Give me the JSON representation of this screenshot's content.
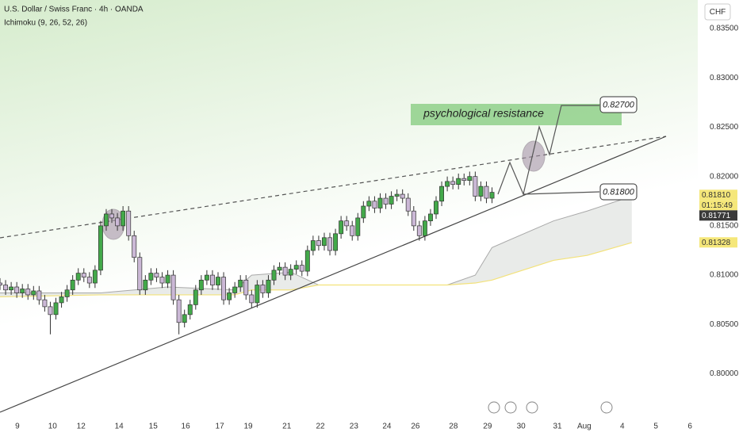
{
  "chart_data": {
    "type": "candlestick",
    "title": "U.S. Dollar / Swiss Franc · 4h · OANDA",
    "subtitle": "Ichimoku (9, 26, 52, 26)",
    "currency": "CHF",
    "up_color": "#43a94a",
    "down_color": "#cbb8d6",
    "x": [
      0,
      1,
      2,
      3,
      4,
      5,
      6,
      7,
      8,
      9,
      10,
      11,
      12,
      13,
      14,
      15,
      16,
      17,
      18,
      19,
      20,
      21,
      22,
      23,
      24,
      25,
      26,
      27,
      28,
      29,
      30,
      31,
      32,
      33,
      34,
      35,
      36,
      37,
      38,
      39,
      40,
      41,
      42,
      43,
      44,
      45,
      46,
      47,
      48,
      49,
      50,
      51,
      52,
      53,
      54,
      55,
      56,
      57,
      58,
      59,
      60,
      61,
      62,
      63,
      64,
      65,
      66,
      67,
      68,
      69,
      70,
      71,
      72,
      73,
      74,
      75,
      76,
      77,
      78,
      79,
      80,
      81,
      82,
      83,
      84,
      85,
      86,
      87,
      88
    ],
    "open": [
      0.8092,
      0.809,
      0.8085,
      0.8088,
      0.8082,
      0.8086,
      0.808,
      0.8084,
      0.8075,
      0.8068,
      0.806,
      0.8072,
      0.8078,
      0.8085,
      0.8095,
      0.8102,
      0.8098,
      0.8092,
      0.8105,
      0.815,
      0.8162,
      0.8158,
      0.815,
      0.8165,
      0.814,
      0.8118,
      0.8085,
      0.8095,
      0.8102,
      0.8098,
      0.8092,
      0.81,
      0.8075,
      0.8052,
      0.806,
      0.807,
      0.8085,
      0.8095,
      0.81,
      0.809,
      0.8098,
      0.8075,
      0.8082,
      0.8088,
      0.8095,
      0.808,
      0.8072,
      0.809,
      0.8082,
      0.8095,
      0.8105,
      0.8108,
      0.81,
      0.8106,
      0.811,
      0.8104,
      0.8125,
      0.8135,
      0.813,
      0.8138,
      0.8125,
      0.8142,
      0.8155,
      0.815,
      0.814,
      0.8158,
      0.817,
      0.8175,
      0.8168,
      0.8178,
      0.8172,
      0.818,
      0.8182,
      0.8178,
      0.8165,
      0.815,
      0.814,
      0.8155,
      0.8162,
      0.8175,
      0.819,
      0.8195,
      0.8192,
      0.8198,
      0.8196,
      0.82,
      0.818,
      0.819,
      0.8178
    ],
    "high": [
      0.8097,
      0.8095,
      0.8093,
      0.8093,
      0.8091,
      0.8091,
      0.8089,
      0.8089,
      0.808,
      0.8073,
      0.8077,
      0.8083,
      0.809,
      0.81,
      0.8107,
      0.8107,
      0.8103,
      0.811,
      0.8155,
      0.8167,
      0.8167,
      0.8163,
      0.817,
      0.817,
      0.8145,
      0.8123,
      0.81,
      0.8107,
      0.8107,
      0.8103,
      0.8105,
      0.8105,
      0.808,
      0.8065,
      0.8075,
      0.809,
      0.81,
      0.8105,
      0.8105,
      0.8103,
      0.8103,
      0.8087,
      0.8093,
      0.81,
      0.81,
      0.8085,
      0.8095,
      0.8095,
      0.81,
      0.811,
      0.8113,
      0.8113,
      0.8111,
      0.8115,
      0.8115,
      0.813,
      0.814,
      0.814,
      0.8143,
      0.8143,
      0.8147,
      0.816,
      0.816,
      0.8155,
      0.8163,
      0.8175,
      0.818,
      0.818,
      0.8183,
      0.8183,
      0.8185,
      0.8187,
      0.8187,
      0.8183,
      0.817,
      0.8155,
      0.816,
      0.8167,
      0.818,
      0.8195,
      0.82,
      0.82,
      0.8203,
      0.8203,
      0.8205,
      0.8205,
      0.8195,
      0.8195,
      0.8189
    ],
    "low": [
      0.8085,
      0.808,
      0.808,
      0.8077,
      0.8077,
      0.8075,
      0.8075,
      0.807,
      0.8063,
      0.804,
      0.8055,
      0.8067,
      0.8073,
      0.808,
      0.809,
      0.8093,
      0.8087,
      0.8087,
      0.81,
      0.8145,
      0.8153,
      0.8145,
      0.8145,
      0.8135,
      0.8113,
      0.808,
      0.808,
      0.809,
      0.8093,
      0.8087,
      0.8087,
      0.807,
      0.804,
      0.8047,
      0.8055,
      0.8065,
      0.808,
      0.809,
      0.8085,
      0.8085,
      0.807,
      0.807,
      0.8077,
      0.8083,
      0.8075,
      0.8067,
      0.8067,
      0.8077,
      0.8077,
      0.809,
      0.81,
      0.8095,
      0.8095,
      0.8101,
      0.8099,
      0.8099,
      0.812,
      0.8125,
      0.8125,
      0.812,
      0.812,
      0.8137,
      0.8145,
      0.8135,
      0.8135,
      0.8153,
      0.8165,
      0.8163,
      0.8163,
      0.8167,
      0.8167,
      0.8175,
      0.8173,
      0.816,
      0.8145,
      0.8135,
      0.8135,
      0.815,
      0.8157,
      0.817,
      0.8185,
      0.8187,
      0.8187,
      0.8191,
      0.8191,
      0.8175,
      0.8175,
      0.8173,
      0.8173
    ],
    "close": [
      0.809,
      0.8085,
      0.8088,
      0.8082,
      0.8086,
      0.808,
      0.8084,
      0.8075,
      0.8068,
      0.806,
      0.8072,
      0.8078,
      0.8085,
      0.8095,
      0.8102,
      0.8098,
      0.8092,
      0.8105,
      0.815,
      0.8162,
      0.8158,
      0.815,
      0.8165,
      0.814,
      0.8118,
      0.8085,
      0.8095,
      0.8102,
      0.8098,
      0.8092,
      0.81,
      0.8075,
      0.8052,
      0.806,
      0.807,
      0.8085,
      0.8095,
      0.81,
      0.809,
      0.8098,
      0.8075,
      0.8082,
      0.8088,
      0.8095,
      0.808,
      0.8072,
      0.809,
      0.8082,
      0.8095,
      0.8105,
      0.8108,
      0.81,
      0.8106,
      0.811,
      0.8104,
      0.8125,
      0.8135,
      0.813,
      0.8138,
      0.8125,
      0.8142,
      0.8155,
      0.815,
      0.814,
      0.8158,
      0.817,
      0.8175,
      0.8168,
      0.8178,
      0.8172,
      0.818,
      0.8182,
      0.8178,
      0.8165,
      0.815,
      0.814,
      0.8155,
      0.8162,
      0.8175,
      0.819,
      0.8195,
      0.8192,
      0.8198,
      0.8196,
      0.82,
      0.818,
      0.819,
      0.8178,
      0.8184
    ],
    "cloud": {
      "x": [
        0,
        18,
        30,
        42,
        45,
        52,
        57,
        80,
        85,
        88,
        99,
        105,
        113
      ],
      "span_a": [
        0.8082,
        0.8082,
        0.8088,
        0.8085,
        0.81,
        0.8103,
        0.809,
        0.809,
        0.81,
        0.8128,
        0.8155,
        0.8165,
        0.818
      ],
      "span_b": [
        0.8078,
        0.808,
        0.808,
        0.808,
        0.8085,
        0.8085,
        0.809,
        0.809,
        0.8092,
        0.8095,
        0.8115,
        0.812,
        0.8133
      ],
      "color_a": "#a9a9a9",
      "color_b": "#f3e27a"
    },
    "xlim": [
      0,
      124.8
    ],
    "ylim": [
      0.7961,
      0.8379
    ],
    "xticks": [
      {
        "value": 3.1,
        "label": "9"
      },
      {
        "value": 9.4,
        "label": "10"
      },
      {
        "value": 14.5,
        "label": "12"
      },
      {
        "value": 21.3,
        "label": "14"
      },
      {
        "value": 27.4,
        "label": "15"
      },
      {
        "value": 33.2,
        "label": "16"
      },
      {
        "value": 39.3,
        "label": "17"
      },
      {
        "value": 44.4,
        "label": "19"
      },
      {
        "value": 51.3,
        "label": "21"
      },
      {
        "value": 57.3,
        "label": "22"
      },
      {
        "value": 63.3,
        "label": "23"
      },
      {
        "value": 69.2,
        "label": "24"
      },
      {
        "value": 74.3,
        "label": "26"
      },
      {
        "value": 81.1,
        "label": "28"
      },
      {
        "value": 87.2,
        "label": "29"
      },
      {
        "value": 93.2,
        "label": "30"
      },
      {
        "value": 99.7,
        "label": "31"
      },
      {
        "value": 104.5,
        "label": "Aug"
      },
      {
        "value": 111.3,
        "label": "4"
      },
      {
        "value": 117.3,
        "label": "5"
      },
      {
        "value": 123.4,
        "label": "6"
      }
    ],
    "yticks": [
      {
        "value": 0.835,
        "label": "0.83500"
      },
      {
        "value": 0.83,
        "label": "0.83000"
      },
      {
        "value": 0.825,
        "label": "0.82500"
      },
      {
        "value": 0.82,
        "label": "0.82000"
      },
      {
        "value": 0.815,
        "label": "0.81500"
      },
      {
        "value": 0.81,
        "label": "0.81000"
      },
      {
        "value": 0.805,
        "label": "0.80500"
      },
      {
        "value": 0.8,
        "label": "0.80000"
      }
    ],
    "price_labels": [
      {
        "value": 0.8181,
        "label": "0.81810",
        "bg": "#f5e77a",
        "fg": "#333333"
      },
      {
        "value": 0.81771,
        "label": "0.81771",
        "bg": "#3a3a3a",
        "fg": "#ffffff"
      },
      {
        "value": 0.81328,
        "label": "0.81328",
        "bg": "#f5e77a",
        "fg": "#333333"
      }
    ],
    "countdown": "01:15:49",
    "annotations": {
      "zone": "psychological resistance",
      "target": "0.82700",
      "support": "0.81800"
    }
  }
}
